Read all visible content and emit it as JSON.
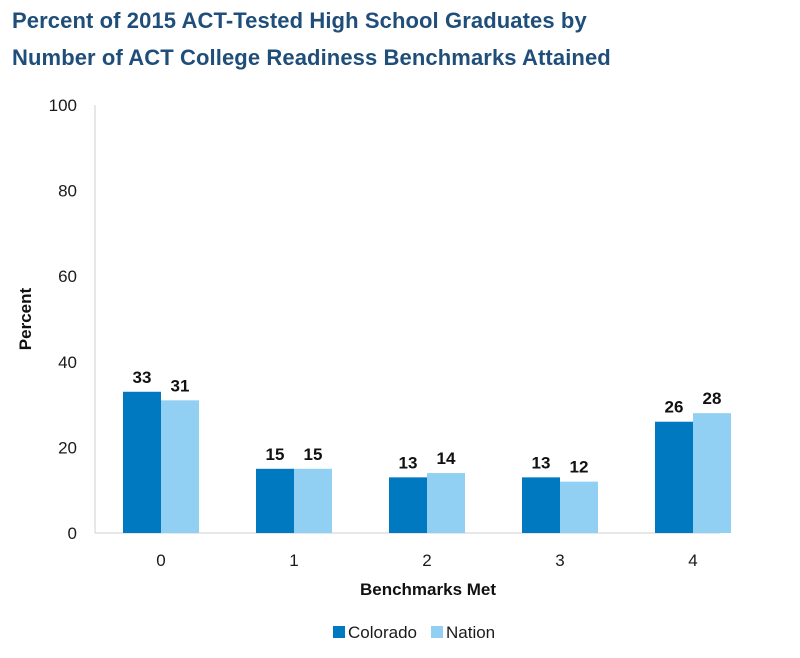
{
  "chart_data": {
    "type": "bar",
    "title_lines": [
      "Percent of 2015 ACT-Tested High School Graduates by",
      "Number of ACT College Readiness Benchmarks Attained"
    ],
    "xlabel": "Benchmarks Met",
    "ylabel": "Percent",
    "categories": [
      "0",
      "1",
      "2",
      "3",
      "4"
    ],
    "series": [
      {
        "name": "Colorado",
        "color": "#0079c1",
        "values": [
          33,
          15,
          13,
          13,
          26
        ]
      },
      {
        "name": "Nation",
        "color": "#91d0f2",
        "values": [
          31,
          15,
          14,
          12,
          28
        ]
      }
    ],
    "ylim": [
      0,
      100
    ],
    "yticks": [
      "0",
      "20",
      "40",
      "60",
      "80",
      "100"
    ],
    "grid": false,
    "legend_position": "bottom-center"
  }
}
